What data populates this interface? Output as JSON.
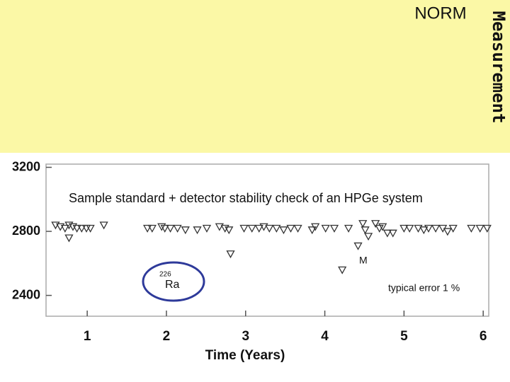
{
  "header": {
    "title": "NORM",
    "side_label": "Measurement"
  },
  "chart_data": {
    "type": "scatter",
    "title": "Sample standard + detector stability check of an HPGe system",
    "xlabel": "Time (Years)",
    "note": "typical error 1 %",
    "isotope": {
      "mass": "226",
      "symbol": "Ra"
    },
    "marker_label": "M",
    "color": "#333333",
    "x": [
      0.6,
      0.66,
      0.72,
      0.77,
      0.82,
      0.87,
      0.77,
      0.93,
      0.99,
      1.04,
      1.21,
      1.76,
      1.82,
      1.94,
      1.98,
      2.05,
      2.14,
      2.24,
      2.39,
      2.51,
      2.67,
      2.74,
      2.79,
      2.81,
      2.98,
      3.08,
      3.17,
      3.23,
      3.3,
      3.39,
      3.48,
      3.57,
      3.66,
      3.84,
      3.88,
      4.01,
      4.12,
      4.22,
      4.3,
      4.42,
      4.48,
      4.51,
      4.55,
      4.64,
      4.69,
      4.73,
      4.79,
      4.86,
      5.0,
      5.07,
      5.18,
      5.25,
      5.31,
      5.4,
      5.49,
      5.55,
      5.62,
      5.85,
      5.96,
      6.05
    ],
    "values": [
      2840,
      2830,
      2820,
      2840,
      2830,
      2820,
      2760,
      2820,
      2820,
      2820,
      2840,
      2820,
      2820,
      2830,
      2820,
      2820,
      2820,
      2810,
      2810,
      2820,
      2830,
      2820,
      2810,
      2660,
      2820,
      2820,
      2820,
      2830,
      2820,
      2820,
      2810,
      2820,
      2820,
      2810,
      2830,
      2820,
      2820,
      2560,
      2820,
      2710,
      2850,
      2810,
      2770,
      2850,
      2820,
      2830,
      2790,
      2790,
      2820,
      2820,
      2820,
      2810,
      2820,
      2820,
      2820,
      2800,
      2820,
      2820,
      2820,
      2820
    ],
    "xlim": [
      0.48,
      6.07
    ],
    "xticks": [
      1,
      2,
      3,
      4,
      5,
      6
    ],
    "ylim": [
      2270,
      3220
    ],
    "yticks": [
      2400,
      2800,
      3200
    ]
  }
}
